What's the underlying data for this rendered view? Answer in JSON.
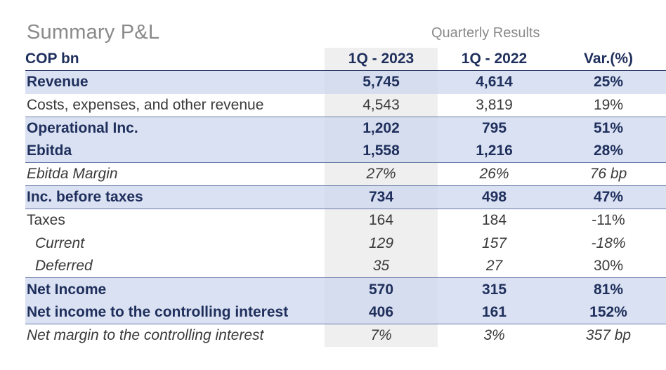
{
  "header": {
    "title": "Summary P&L",
    "subtitle": "Quarterly Results"
  },
  "table": {
    "columns": [
      "COP bn",
      "1Q - 2023",
      "1Q - 2022",
      "Var.(%)"
    ],
    "rows": [
      {
        "label": "Revenue",
        "v1": "5,745",
        "v2": "4,614",
        "var": "25%"
      },
      {
        "label": "Costs, expenses, and other revenue",
        "v1": "4,543",
        "v2": "3,819",
        "var": "19%"
      },
      {
        "label": "Operational Inc.",
        "v1": "1,202",
        "v2": "795",
        "var": "51%"
      },
      {
        "label": "Ebitda",
        "v1": "1,558",
        "v2": "1,216",
        "var": "28%"
      },
      {
        "label": "Ebitda Margin",
        "v1": "27%",
        "v2": "26%",
        "var": "76 bp"
      },
      {
        "label": "Inc. before taxes",
        "v1": "734",
        "v2": "498",
        "var": "47%"
      },
      {
        "label": "Taxes",
        "v1": "164",
        "v2": "184",
        "var": "-11%"
      },
      {
        "label": "Current",
        "v1": "129",
        "v2": "157",
        "var": "-18%"
      },
      {
        "label": "Deferred",
        "v1": "35",
        "v2": "27",
        "var": "30%"
      },
      {
        "label": "Net Income",
        "v1": "570",
        "v2": "315",
        "var": "81%"
      },
      {
        "label": "Net income to the controlling interest",
        "v1": "406",
        "v2": "161",
        "var": "152%"
      },
      {
        "label": "Net margin to the controlling interest",
        "v1": "7%",
        "v2": "3%",
        "var": "357 bp"
      }
    ]
  },
  "colors": {
    "header_text": "#1f2f5c",
    "band": "#cdd7ee",
    "highlight_column": "#efefef",
    "title_gray": "#8a8a8a"
  }
}
